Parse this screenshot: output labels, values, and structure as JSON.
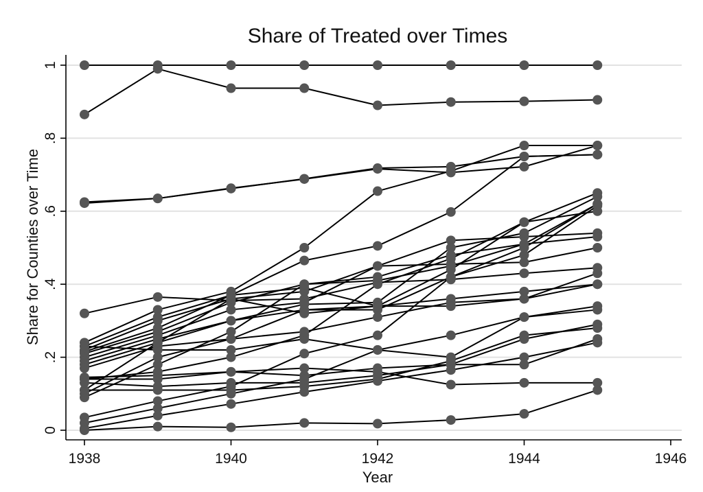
{
  "chart_data": {
    "type": "line",
    "title": "Share of Treated over Times",
    "xlabel": "Year",
    "ylabel": "Share for Counties over Time",
    "xlim": [
      1938,
      1946
    ],
    "ylim": [
      0,
      1
    ],
    "x_ticks": [
      1938,
      1940,
      1942,
      1944,
      1946
    ],
    "x_tick_labels": [
      "1938",
      "1940",
      "1942",
      "1944",
      "1946"
    ],
    "y_ticks": [
      0,
      0.2,
      0.4,
      0.6,
      0.8,
      1
    ],
    "y_tick_labels": [
      "0",
      ".2",
      ".4",
      ".6",
      ".8",
      "1"
    ],
    "grid": true,
    "legend": "none",
    "x": [
      1938,
      1939,
      1940,
      1941,
      1942,
      1943,
      1944,
      1945
    ],
    "series": [
      {
        "values": [
          1.0,
          1.0,
          1.0,
          1.0,
          1.0,
          1.0,
          1.0,
          1.0
        ]
      },
      {
        "values": [
          0.865,
          0.99,
          0.937,
          0.937,
          0.89,
          0.899,
          0.901,
          0.905
        ]
      },
      {
        "values": [
          0.625,
          0.635,
          0.662,
          0.689,
          0.718,
          0.722,
          0.75,
          0.755
        ]
      },
      {
        "values": [
          0.622,
          0.635,
          0.663,
          0.688,
          0.716,
          0.706,
          0.722,
          0.78
        ]
      },
      {
        "values": [
          0.32,
          0.365,
          0.355,
          0.36,
          0.405,
          0.413,
          0.43,
          0.445
        ]
      },
      {
        "values": [
          0.24,
          0.33,
          0.38,
          0.5,
          0.655,
          0.71,
          0.78,
          0.78
        ]
      },
      {
        "values": [
          0.23,
          0.31,
          0.37,
          0.465,
          0.505,
          0.598,
          0.75,
          0.755
        ]
      },
      {
        "values": [
          0.22,
          0.3,
          0.36,
          0.38,
          0.45,
          0.52,
          0.53,
          0.54
        ]
      },
      {
        "values": [
          0.215,
          0.28,
          0.37,
          0.39,
          0.34,
          0.44,
          0.57,
          0.65
        ]
      },
      {
        "values": [
          0.21,
          0.27,
          0.35,
          0.4,
          0.41,
          0.45,
          0.51,
          0.62
        ]
      },
      {
        "values": [
          0.2,
          0.26,
          0.33,
          0.35,
          0.45,
          0.455,
          0.46,
          0.5
        ]
      },
      {
        "values": [
          0.19,
          0.25,
          0.3,
          0.345,
          0.35,
          0.5,
          0.54,
          0.64
        ]
      },
      {
        "values": [
          0.18,
          0.24,
          0.3,
          0.33,
          0.33,
          0.42,
          0.48,
          0.615
        ]
      },
      {
        "values": [
          0.17,
          0.23,
          0.25,
          0.33,
          0.34,
          0.36,
          0.38,
          0.4
        ]
      },
      {
        "values": [
          0.23,
          0.22,
          0.22,
          0.25,
          0.22,
          0.2,
          0.31,
          0.34
        ]
      },
      {
        "values": [
          0.14,
          0.16,
          0.2,
          0.26,
          0.4,
          0.47,
          0.57,
          0.6
        ]
      },
      {
        "values": [
          0.145,
          0.15,
          0.16,
          0.15,
          0.17,
          0.18,
          0.25,
          0.29
        ]
      },
      {
        "values": [
          0.11,
          0.11,
          0.11,
          0.12,
          0.14,
          0.19,
          0.26,
          0.28
        ]
      },
      {
        "values": [
          0.1,
          0.2,
          0.25,
          0.27,
          0.31,
          0.35,
          0.36,
          0.43
        ]
      },
      {
        "values": [
          0.09,
          0.18,
          0.27,
          0.4,
          0.42,
          0.48,
          0.51,
          0.53
        ]
      },
      {
        "values": [
          0.11,
          0.24,
          0.36,
          0.32,
          0.34,
          0.34,
          0.36,
          0.4
        ]
      },
      {
        "values": [
          0.14,
          0.14,
          0.16,
          0.17,
          0.16,
          0.125,
          0.13,
          0.13
        ]
      },
      {
        "values": [
          0.13,
          0.12,
          0.13,
          0.13,
          0.15,
          0.18,
          0.18,
          0.25
        ]
      },
      {
        "values": [
          0.035,
          0.08,
          0.12,
          0.21,
          0.26,
          0.42,
          0.5,
          0.62
        ]
      },
      {
        "values": [
          0.02,
          0.06,
          0.1,
          0.14,
          0.22,
          0.26,
          0.31,
          0.33
        ]
      },
      {
        "values": [
          0.005,
          0.04,
          0.072,
          0.105,
          0.135,
          0.165,
          0.2,
          0.24
        ]
      },
      {
        "values": [
          0.0,
          0.01,
          0.008,
          0.02,
          0.018,
          0.028,
          0.045,
          0.11
        ]
      }
    ]
  }
}
